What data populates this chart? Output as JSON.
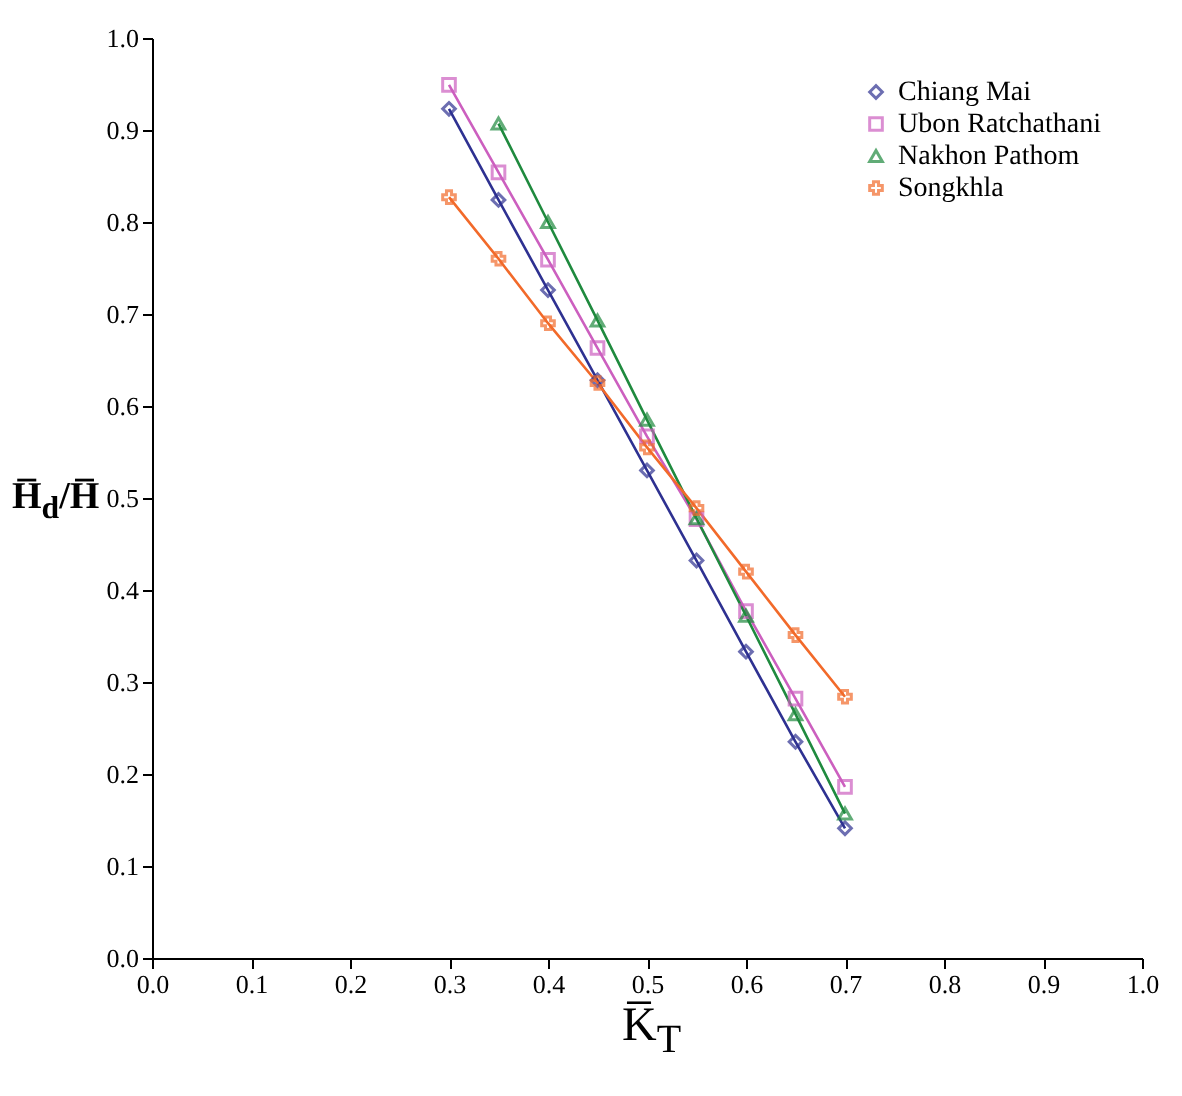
{
  "chart_data": {
    "type": "line",
    "xlabel": "K̅$_{T}$",
    "ylabel": "H̅$_{d}$/H̅",
    "x": [
      0.3,
      0.35,
      0.4,
      0.45,
      0.5,
      0.55,
      0.6,
      0.65,
      0.7
    ],
    "series": [
      {
        "name": "Chiang Mai",
        "color": "#2e3191",
        "marker": "diamond",
        "values": [
          0.923,
          0.824,
          0.726,
          0.628,
          0.53,
          0.432,
          0.333,
          0.235,
          0.141
        ]
      },
      {
        "name": "Ubon Ratchathani",
        "color": "#cc5fbf",
        "marker": "square",
        "values": [
          0.949,
          0.854,
          0.759,
          0.663,
          0.567,
          0.477,
          0.377,
          0.282,
          0.186
        ]
      },
      {
        "name": "Nakhon Pathom",
        "color": "#1f8a3e",
        "marker": "triangle",
        "x": [
          0.35,
          0.4,
          0.45,
          0.5,
          0.55,
          0.6,
          0.65,
          0.7
        ],
        "values": [
          0.907,
          0.8,
          0.693,
          0.585,
          0.478,
          0.372,
          0.265,
          0.157
        ]
      },
      {
        "name": "Songkhla",
        "color": "#f26a2a",
        "marker": "cross",
        "values": [
          0.827,
          0.76,
          0.69,
          0.625,
          0.555,
          0.489,
          0.42,
          0.351,
          0.284
        ]
      }
    ],
    "xlim": [
      0,
      1
    ],
    "xticks": [
      {
        "value": 0,
        "label": "0.0"
      },
      0.1,
      0.2,
      0.3,
      0.4,
      0.5,
      0.6,
      0.7,
      0.8,
      0.9,
      {
        "value": 1,
        "label": "1.0"
      }
    ],
    "ylim": [
      0,
      1
    ],
    "yticks": [
      {
        "value": 0,
        "label": "0.0"
      },
      0.1,
      0.2,
      0.3,
      0.4,
      0.5,
      0.6,
      0.7,
      0.8,
      0.9,
      {
        "value": 1,
        "label": "1.0"
      }
    ],
    "grid": false,
    "legend": "top right",
    "line_style": "solid"
  }
}
